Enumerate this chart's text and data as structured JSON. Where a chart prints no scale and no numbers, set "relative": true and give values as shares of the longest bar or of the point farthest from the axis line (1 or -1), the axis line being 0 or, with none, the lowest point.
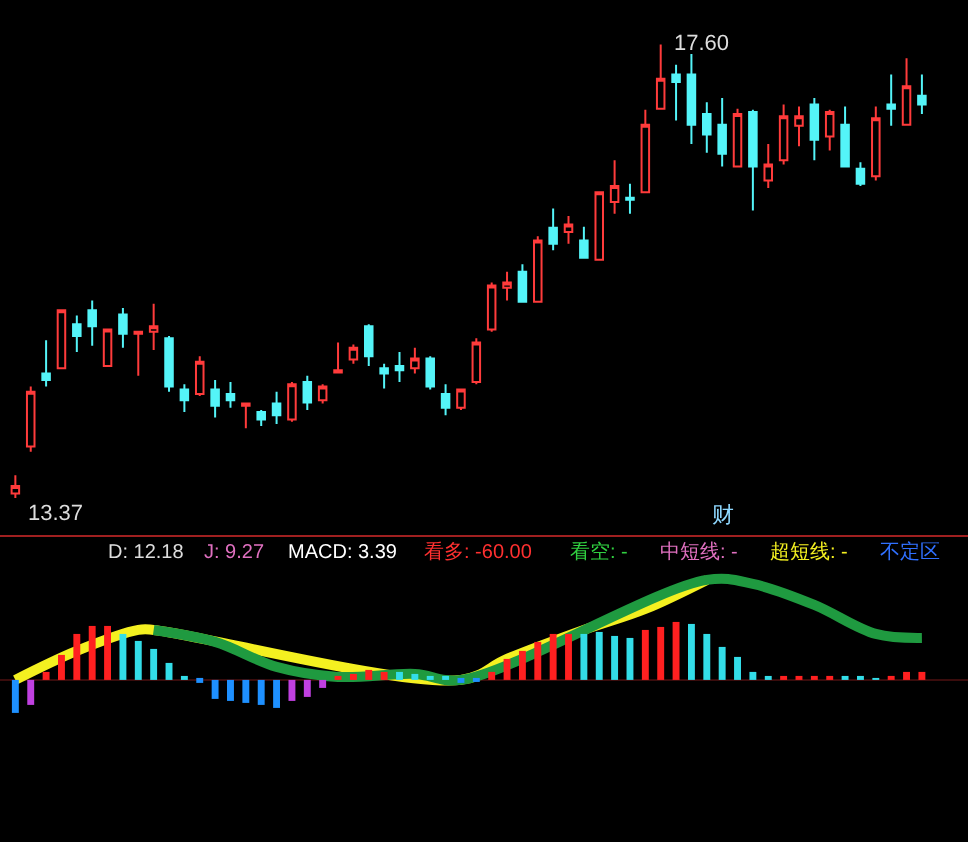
{
  "chart_data": [
    {
      "type": "candlestick",
      "categories": [
        null,
        null,
        null,
        null,
        null,
        null,
        null,
        null,
        null,
        null,
        null,
        null,
        null,
        null,
        null,
        null,
        null,
        null,
        null,
        null,
        null,
        null,
        null,
        null,
        null,
        null,
        null,
        null,
        null,
        null,
        null,
        null,
        null,
        null,
        null,
        null,
        null,
        null,
        null,
        null,
        null,
        null,
        null,
        null,
        null,
        null,
        null,
        null,
        null,
        null,
        null,
        null,
        null,
        null,
        null,
        null,
        null,
        null,
        null,
        null
      ],
      "colors": [
        "#ff3b3b",
        "#ff3b3b",
        "#54f4f8",
        "#ff3b3b",
        "#54f4f8",
        "#54f4f8",
        "#ff3b3b",
        "#54f4f8",
        "#ff3b3b",
        "#ff3b3b",
        "#54f4f8",
        "#54f4f8",
        "#ff3b3b",
        "#54f4f8",
        "#54f4f8",
        "#ff3b3b",
        "#54f4f8",
        "#54f4f8",
        "#ff3b3b",
        "#54f4f8",
        "#ff3b3b",
        "#ff3b3b",
        "#ff3b3b",
        "#54f4f8",
        "#54f4f8",
        "#54f4f8",
        "#ff3b3b",
        "#54f4f8",
        "#54f4f8",
        "#ff3b3b",
        "#ff3b3b",
        "#ff3b3b",
        "#ff3b3b",
        "#54f4f8",
        "#ff3b3b",
        "#54f4f8",
        "#ff3b3b",
        "#54f4f8",
        "#ff3b3b",
        "#ff3b3b",
        "#54f4f8",
        "#ff3b3b",
        "#ff3b3b",
        "#54f4f8",
        "#54f4f8",
        "#54f4f8",
        "#54f4f8",
        "#ff3b3b",
        "#54f4f8",
        "#ff3b3b",
        "#ff3b3b",
        "#ff3b3b",
        "#54f4f8",
        "#ff3b3b",
        "#54f4f8",
        "#54f4f8",
        "#ff3b3b",
        "#54f4f8",
        "#ff3b3b",
        "#54f4f8"
      ],
      "ohlc": [
        [
          13.41,
          13.58,
          13.37,
          13.48
        ],
        [
          13.85,
          14.41,
          13.8,
          14.36
        ],
        [
          14.53,
          14.84,
          14.41,
          14.47
        ],
        [
          14.58,
          15.12,
          14.58,
          15.12
        ],
        [
          14.99,
          15.07,
          14.73,
          14.88
        ],
        [
          15.12,
          15.21,
          14.79,
          14.97
        ],
        [
          14.6,
          14.94,
          14.6,
          14.94
        ],
        [
          15.08,
          15.14,
          14.77,
          14.9
        ],
        [
          14.9,
          14.92,
          14.51,
          14.92
        ],
        [
          14.92,
          15.18,
          14.75,
          14.97
        ],
        [
          14.86,
          14.88,
          14.36,
          14.41
        ],
        [
          14.38,
          14.43,
          14.17,
          14.28
        ],
        [
          14.34,
          14.69,
          14.32,
          14.64
        ],
        [
          14.38,
          14.47,
          14.12,
          14.23
        ],
        [
          14.34,
          14.45,
          14.21,
          14.28
        ],
        [
          14.23,
          14.25,
          14.02,
          14.25
        ],
        [
          14.17,
          14.19,
          14.04,
          14.1
        ],
        [
          14.25,
          14.36,
          14.06,
          14.14
        ],
        [
          14.1,
          14.45,
          14.08,
          14.43
        ],
        [
          14.45,
          14.51,
          14.19,
          14.26
        ],
        [
          14.28,
          14.43,
          14.25,
          14.41
        ],
        [
          14.54,
          14.82,
          14.53,
          14.56
        ],
        [
          14.66,
          14.8,
          14.62,
          14.77
        ],
        [
          14.97,
          14.99,
          14.6,
          14.69
        ],
        [
          14.58,
          14.62,
          14.39,
          14.53
        ],
        [
          14.6,
          14.73,
          14.45,
          14.56
        ],
        [
          14.58,
          14.77,
          14.53,
          14.67
        ],
        [
          14.67,
          14.69,
          14.38,
          14.41
        ],
        [
          14.34,
          14.43,
          14.14,
          14.21
        ],
        [
          14.21,
          14.39,
          14.19,
          14.38
        ],
        [
          14.45,
          14.86,
          14.43,
          14.82
        ],
        [
          14.94,
          15.38,
          14.92,
          15.35
        ],
        [
          15.33,
          15.48,
          15.21,
          15.38
        ],
        [
          15.48,
          15.55,
          15.2,
          15.2
        ],
        [
          15.2,
          15.81,
          15.2,
          15.77
        ],
        [
          15.89,
          16.07,
          15.68,
          15.74
        ],
        [
          15.85,
          16.0,
          15.74,
          15.92
        ],
        [
          15.77,
          15.9,
          15.61,
          15.61
        ],
        [
          15.59,
          16.22,
          15.59,
          16.22
        ],
        [
          16.13,
          16.52,
          16.02,
          16.28
        ],
        [
          16.17,
          16.3,
          16.02,
          16.15
        ],
        [
          16.22,
          16.99,
          16.22,
          16.85
        ],
        [
          17.0,
          17.6,
          17.0,
          17.28
        ],
        [
          17.32,
          17.41,
          16.89,
          17.25
        ],
        [
          17.32,
          17.51,
          16.67,
          16.85
        ],
        [
          16.95,
          17.06,
          16.59,
          16.76
        ],
        [
          16.85,
          17.1,
          16.46,
          16.58
        ],
        [
          16.46,
          17.0,
          16.46,
          16.95
        ],
        [
          16.97,
          16.99,
          16.05,
          16.46
        ],
        [
          16.33,
          16.67,
          16.26,
          16.48
        ],
        [
          16.52,
          17.04,
          16.48,
          16.93
        ],
        [
          16.84,
          17.02,
          16.65,
          16.93
        ],
        [
          17.04,
          17.1,
          16.52,
          16.71
        ],
        [
          16.74,
          16.99,
          16.61,
          16.97
        ],
        [
          16.85,
          17.02,
          16.46,
          16.46
        ],
        [
          16.44,
          16.5,
          16.28,
          16.3
        ],
        [
          16.37,
          17.02,
          16.33,
          16.91
        ],
        [
          17.04,
          17.32,
          16.84,
          17.0
        ],
        [
          16.85,
          17.47,
          16.85,
          17.21
        ],
        [
          17.12,
          17.32,
          16.95,
          17.04
        ]
      ],
      "annotations": [
        "17.60",
        "13.37",
        "财"
      ]
    },
    {
      "type": "bar",
      "relative": true,
      "categories": [
        null,
        null,
        null,
        null,
        null,
        null,
        null,
        null,
        null,
        null,
        null,
        null,
        null,
        null,
        null,
        null,
        null,
        null,
        null,
        null,
        null,
        null,
        null,
        null,
        null,
        null,
        null,
        null,
        null,
        null,
        null,
        null,
        null,
        null,
        null,
        null,
        null,
        null,
        null,
        null,
        null,
        null,
        null,
        null,
        null,
        null,
        null,
        null,
        null,
        null,
        null,
        null,
        null,
        null,
        null,
        null,
        null,
        null,
        null,
        null
      ],
      "series": [
        {
          "type": "bar",
          "values": [
            -0.33,
            -0.25,
            0.08,
            0.25,
            0.46,
            0.54,
            0.54,
            0.46,
            0.39,
            0.31,
            0.17,
            0.03,
            -0.03,
            -0.19,
            -0.21,
            -0.23,
            -0.25,
            -0.28,
            -0.21,
            -0.17,
            -0.08,
            0.04,
            0.06,
            0.1,
            0.08,
            0.08,
            0.06,
            0.04,
            0.03,
            -0.03,
            -0.02,
            0.08,
            0.21,
            0.29,
            0.38,
            0.46,
            0.46,
            0.46,
            0.48,
            0.44,
            0.42,
            0.5,
            0.53,
            0.58,
            0.56,
            0.46,
            0.33,
            0.23,
            0.08,
            0.02,
            0.02,
            0.04,
            0.04,
            0.04,
            0.03,
            0.02,
            0.01,
            0.04,
            0.08,
            0.08
          ],
          "colors": [
            "#1e90ff",
            "#c040e0",
            "#ff2020",
            "#ff2020",
            "#ff2020",
            "#ff2020",
            "#ff2020",
            "#33dde8",
            "#33dde8",
            "#33dde8",
            "#33dde8",
            "#33dde8",
            "#1e90ff",
            "#1e90ff",
            "#1e90ff",
            "#1e90ff",
            "#1e90ff",
            "#1e90ff",
            "#c040e0",
            "#c040e0",
            "#c040e0",
            "#ff2020",
            "#ff2020",
            "#ff2020",
            "#ff2020",
            "#33dde8",
            "#33dde8",
            "#33dde8",
            "#33dde8",
            "#1e90ff",
            "#1e90ff",
            "#ff2020",
            "#ff2020",
            "#ff2020",
            "#ff2020",
            "#ff2020",
            "#ff2020",
            "#33dde8",
            "#33dde8",
            "#33dde8",
            "#33dde8",
            "#ff2020",
            "#ff2020",
            "#ff2020",
            "#33dde8",
            "#33dde8",
            "#33dde8",
            "#33dde8",
            "#33dde8",
            "#33dde8",
            "#ff2020",
            "#ff2020",
            "#ff2020",
            "#ff2020",
            "#33dde8",
            "#33dde8",
            "#33dde8",
            "#ff2020",
            "#ff2020",
            "#ff2020"
          ]
        },
        {
          "type": "line",
          "color": "#f4f020",
          "values": [
            0,
            null,
            null,
            null,
            0.29,
            null,
            null,
            null,
            0.5,
            0.5,
            null,
            null,
            null,
            null,
            null,
            null,
            null,
            null,
            null,
            null,
            null,
            null,
            null,
            null,
            null,
            null,
            null,
            null,
            null,
            0,
            null,
            null,
            0.21,
            null,
            null,
            null,
            null,
            0.5,
            null,
            null,
            null,
            0.71,
            null,
            null,
            null,
            1,
            null,
            null,
            null,
            null,
            null,
            null,
            null,
            null,
            null,
            null,
            null,
            null,
            null,
            null
          ]
        },
        {
          "type": "line",
          "color": "#1f9a40",
          "values": [
            null,
            null,
            null,
            null,
            null,
            null,
            null,
            null,
            null,
            0.5,
            null,
            null,
            null,
            0.38,
            null,
            null,
            null,
            0.13,
            null,
            null,
            null,
            0.03,
            null,
            null,
            null,
            null,
            0.06,
            null,
            null,
            0,
            null,
            null,
            null,
            null,
            null,
            null,
            null,
            null,
            null,
            null,
            null,
            null,
            null,
            null,
            null,
            1,
            null,
            null,
            0.96,
            null,
            null,
            null,
            0.75,
            null,
            null,
            null,
            0.46,
            null,
            null,
            0.42
          ]
        }
      ],
      "annotations": [
        "D: 12.18",
        "J: 9.27",
        "MACD: 3.39",
        "看多: -60.00",
        "看空: -",
        "中短线: -",
        "超短线: -",
        "不定区"
      ]
    }
  ]
}
